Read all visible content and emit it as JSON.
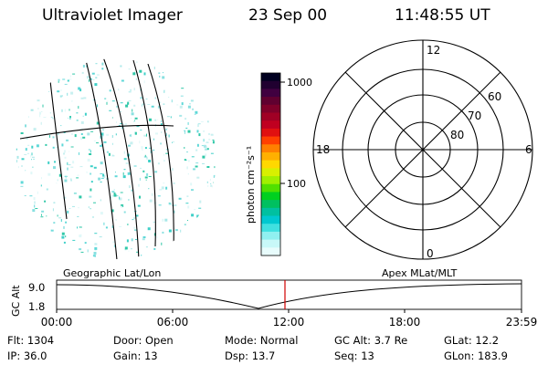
{
  "header": {
    "title": "Ultraviolet Imager",
    "date": "23 Sep 00",
    "time": "11:48:55 UT"
  },
  "colorbar": {
    "unit_label": "photon cm⁻²s⁻¹",
    "tick_labels": [
      "1000",
      "100"
    ],
    "colors": [
      "#000020",
      "#200030",
      "#400040",
      "#600030",
      "#80002a",
      "#a00025",
      "#c00020",
      "#e01010",
      "#ff4000",
      "#ff8000",
      "#ffb000",
      "#ffd800",
      "#d8f000",
      "#a0f000",
      "#50e000",
      "#00d020",
      "#00c060",
      "#00c0a0",
      "#00c8d0",
      "#40e0e0",
      "#90f0f0",
      "#c8f8f8",
      "#e8fcfc"
    ]
  },
  "polar_plot": {
    "mlt_labels": {
      "top": "12",
      "bottom": "0",
      "left": "18",
      "right": "6"
    },
    "lat_labels": [
      "60",
      "70",
      "80"
    ]
  },
  "timeline": {
    "y_axis_label": "GC Alt",
    "y_tick_labels": [
      "9.0",
      "1.8"
    ],
    "left_label": "Geographic Lat/Lon",
    "right_label": "Apex MLat/MLT",
    "x_tick_labels": [
      "00:00",
      "06:00",
      "12:00",
      "18:00",
      "23:59"
    ],
    "marker_color": "#d00000"
  },
  "status": {
    "row1": [
      {
        "key": "Flt:",
        "value": "1304"
      },
      {
        "key": "Door:",
        "value": "Open"
      },
      {
        "key": "Mode:",
        "value": "Normal"
      },
      {
        "key": "GC Alt:",
        "value": "3.7 Re"
      },
      {
        "key": "GLat:",
        "value": "12.2"
      }
    ],
    "row2": [
      {
        "key": "IP:",
        "value": "36.0"
      },
      {
        "key": "Gain:",
        "value": "13"
      },
      {
        "key": "Dsp:",
        "value": "13.7"
      },
      {
        "key": "Seq:",
        "value": "13"
      },
      {
        "key": "GLon:",
        "value": "183.9"
      }
    ]
  }
}
